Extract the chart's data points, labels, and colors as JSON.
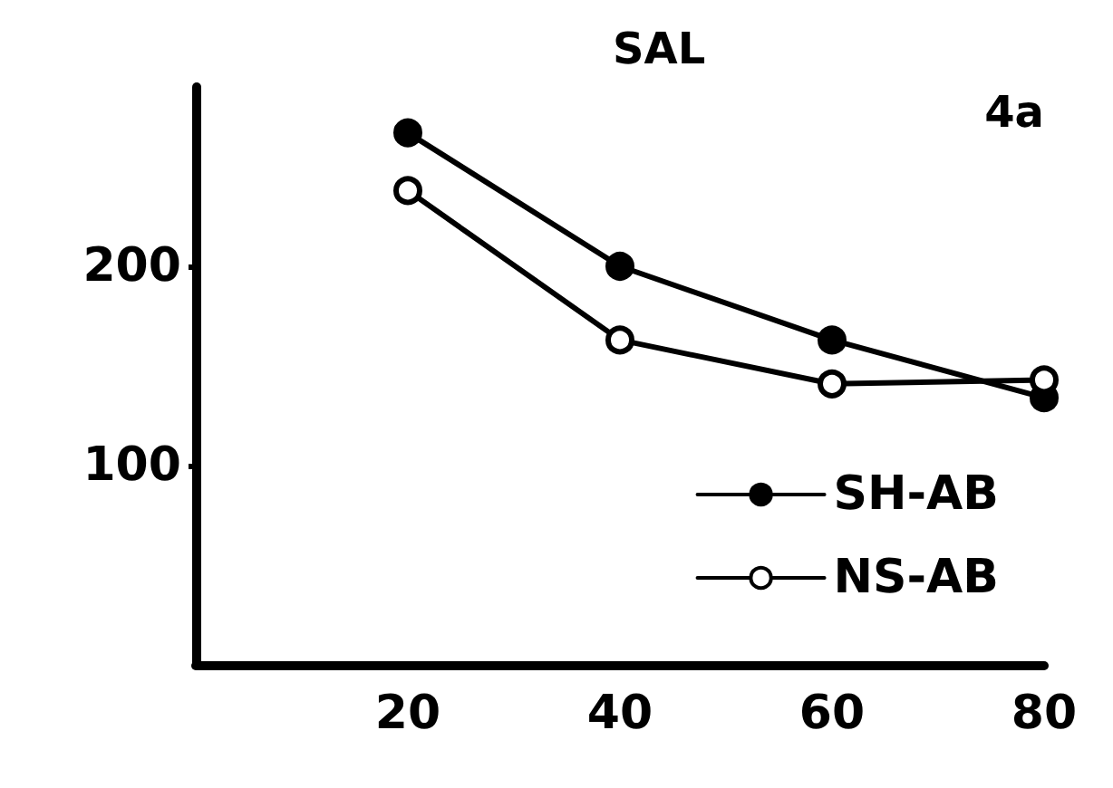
{
  "chart_data": {
    "type": "line",
    "title": "SAL",
    "annotations": [
      "4a"
    ],
    "x": [
      20,
      40,
      60,
      80
    ],
    "series": [
      {
        "name": "SH-AB",
        "color": "#000000",
        "values": [
          267,
          200,
          163,
          134
        ]
      },
      {
        "name": "NS-AB",
        "color": "#000000",
        "values": [
          238,
          163,
          141,
          143
        ]
      }
    ],
    "xlim": [
      0,
      80
    ],
    "xticks": [
      20,
      40,
      60,
      80
    ],
    "ylim": [
      0,
      290
    ],
    "yticks": [
      100,
      200
    ],
    "grid": false,
    "legend": "bottom right",
    "marker": "circle",
    "line_style": "solid"
  }
}
